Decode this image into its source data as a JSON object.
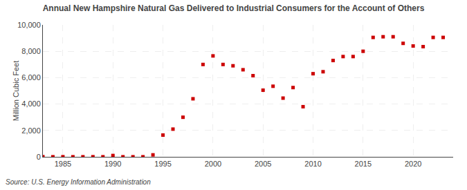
{
  "chart_data": {
    "type": "scatter",
    "title": "Annual New Hampshire Natural Gas Delivered to Industrial Consumers for the Account of Others",
    "ylabel": "Million Cubic Feet",
    "source": "Source: U.S. Energy Information Administration",
    "x": [
      1983,
      1984,
      1985,
      1986,
      1987,
      1988,
      1989,
      1990,
      1991,
      1992,
      1993,
      1994,
      1995,
      1996,
      1997,
      1998,
      1999,
      2000,
      2001,
      2002,
      2003,
      2004,
      2005,
      2006,
      2007,
      2008,
      2009,
      2010,
      2011,
      2012,
      2013,
      2014,
      2015,
      2016,
      2017,
      2018,
      2019,
      2020,
      2021,
      2022,
      2023
    ],
    "values": [
      10,
      5,
      8,
      5,
      5,
      8,
      5,
      100,
      5,
      5,
      5,
      150,
      1650,
      2100,
      3000,
      4400,
      7000,
      7650,
      7000,
      6900,
      6600,
      6150,
      5050,
      5350,
      4450,
      5250,
      3800,
      6300,
      6450,
      7300,
      7600,
      7600,
      8000,
      9050,
      9100,
      9100,
      8600,
      8400,
      8350,
      9050,
      9050
    ],
    "color": "#cc0000",
    "marker": "square",
    "xlim": [
      1983,
      2024
    ],
    "xticks": [
      1985,
      1990,
      1995,
      2000,
      2005,
      2010,
      2015,
      2020
    ],
    "ylim": [
      0,
      10000
    ],
    "yticks": [
      0,
      {
        "value": 2000,
        "label": "2,000"
      },
      {
        "value": 4000,
        "label": "4,000"
      },
      {
        "value": 6000,
        "label": "6,000"
      },
      {
        "value": 8000,
        "label": "8,000"
      },
      {
        "value": 10000,
        "label": "10,000"
      }
    ],
    "grid": true
  }
}
